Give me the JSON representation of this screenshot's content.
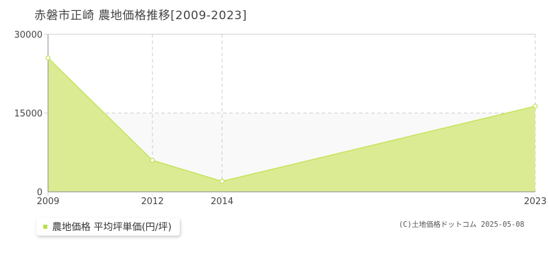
{
  "title": "赤磐市正崎 農地価格推移[2009-2023]",
  "legend_label": "農地価格 平均坪単価(円/坪)",
  "credit": "(C)土地価格ドットコム 2025-05-08",
  "colors": {
    "area_fill": "#dbeb93",
    "line": "#c4e35a",
    "legend_marker": "#b6e04a",
    "plot_band": "#f9f9f9",
    "grid": "#cccccc"
  },
  "chart_data": {
    "type": "area",
    "title": "赤磐市正崎 農地価格推移[2009-2023]",
    "xlabel": "",
    "ylabel": "",
    "x": [
      2009,
      2012,
      2014,
      2023
    ],
    "x_tick_labels": [
      "2009",
      "2012",
      "2014",
      "2023"
    ],
    "series": [
      {
        "name": "農地価格 平均坪単価(円/坪)",
        "values": [
          25500,
          6000,
          2000,
          16300
        ]
      }
    ],
    "y_ticks": [
      0,
      15000,
      30000
    ],
    "y_tick_labels": [
      "0",
      "15000",
      "30000"
    ],
    "ylim": [
      0,
      30000
    ],
    "grid": true,
    "legend_position": "bottom-left"
  }
}
